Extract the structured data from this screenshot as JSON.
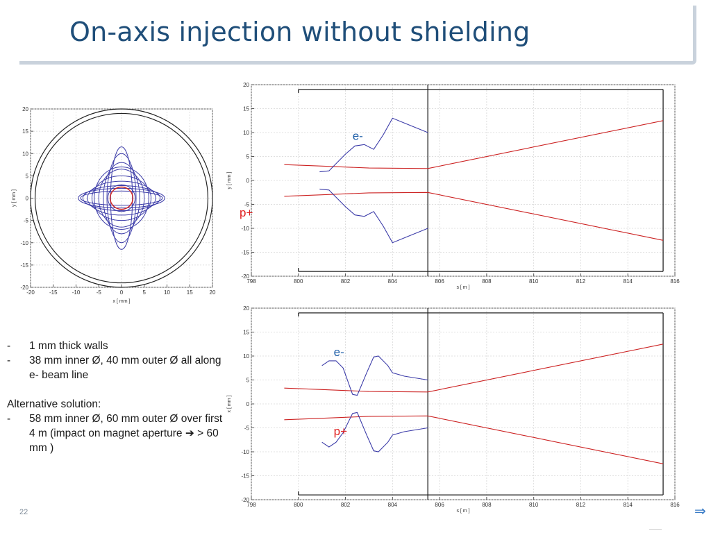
{
  "slide": {
    "title": "On-axis injection without shielding",
    "page_number": "22"
  },
  "bullets": {
    "group1": [
      {
        "dash": "-",
        "text": "1 mm thick walls"
      },
      {
        "dash": "-",
        "text": "38 mm inner Ø, 40 mm outer Ø all along e- beam line"
      }
    ],
    "alt_heading": "Alternative solution:",
    "group2": [
      {
        "dash": "-",
        "text": "58 mm inner Ø, 60 mm outer Ø over first 4 m (impact on magnet aperture ➔ > 60 mm )"
      }
    ]
  },
  "colors": {
    "title": "#1f4e79",
    "electron": "#3b3ba8",
    "proton": "#cc2222",
    "label_e": "#1f5fa8",
    "label_p": "#e02020",
    "wall": "#222222",
    "grid": "#d6d6d6"
  },
  "icons": {
    "nav": "forward-nav-icon"
  },
  "chart_data": [
    {
      "type": "line",
      "title": "",
      "xlabel": "x [ mm ]",
      "ylabel": "y [ mm ]",
      "xlim": [
        -20,
        20
      ],
      "ylim": [
        -20,
        20
      ],
      "xticks": [
        "-20",
        "-15",
        "-10",
        "-5",
        "0",
        "5",
        "10",
        "15",
        "20"
      ],
      "yticks": [
        "20",
        "15",
        "10",
        "5",
        "0",
        "-5",
        "-10",
        "-15",
        "-20"
      ],
      "grid": true,
      "walls": [
        {
          "r": 19
        },
        {
          "r": 20
        }
      ],
      "proton_circle": {
        "r": 2.5
      },
      "electron_ellipses": [
        {
          "a": 9.5,
          "b": 2.2
        },
        {
          "a": 9.0,
          "b": 1.6
        },
        {
          "a": 8.5,
          "b": 2.8
        },
        {
          "a": 7.5,
          "b": 3.8
        },
        {
          "a": 6.5,
          "b": 5.0
        },
        {
          "a": 5.0,
          "b": 6.5
        },
        {
          "a": 4.0,
          "b": 8.0
        },
        {
          "a": 3.2,
          "b": 10.0
        },
        {
          "a": 2.4,
          "b": 11.5
        },
        {
          "a": 6.0,
          "b": 7.0
        },
        {
          "a": 3.0,
          "b": 3.0
        }
      ]
    },
    {
      "type": "line",
      "title": "",
      "xlabel": "s [ m ]",
      "ylabel": "y [ mm ]",
      "xlim": [
        798,
        816
      ],
      "ylim": [
        -20,
        20
      ],
      "xticks": [
        "798",
        "800",
        "802",
        "804",
        "806",
        "808",
        "810",
        "812",
        "814",
        "816"
      ],
      "yticks": [
        "20",
        "15",
        "10",
        "5",
        "0",
        "-5",
        "-10",
        "-15",
        "-20"
      ],
      "grid": true,
      "walls": {
        "upper": 19,
        "lower": -19,
        "s_start": 800,
        "s_end": 815.5,
        "marker_s": 805.5
      },
      "labels": [
        {
          "text": "e-",
          "s": 802.3,
          "v": 8.5,
          "kind": "electron"
        },
        {
          "text": "p+",
          "s": 797.5,
          "v": -7.5,
          "kind": "proton"
        }
      ],
      "series": [
        {
          "kind": "proton",
          "points": [
            [
              799.4,
              3.3
            ],
            [
              801,
              3.0
            ],
            [
              803,
              2.6
            ],
            [
              805.5,
              2.5
            ],
            [
              815.5,
              12.5
            ]
          ]
        },
        {
          "kind": "proton",
          "points": [
            [
              799.4,
              -3.3
            ],
            [
              801,
              -3.0
            ],
            [
              803,
              -2.6
            ],
            [
              805.5,
              -2.5
            ],
            [
              815.5,
              -12.5
            ]
          ]
        },
        {
          "kind": "electron",
          "points": [
            [
              800.9,
              1.8
            ],
            [
              801.3,
              2.0
            ],
            [
              801.5,
              3.0
            ],
            [
              802.0,
              5.5
            ],
            [
              802.4,
              7.2
            ],
            [
              802.8,
              7.5
            ],
            [
              803.2,
              6.5
            ],
            [
              803.6,
              9.5
            ],
            [
              804.0,
              13.0
            ],
            [
              804.5,
              12.0
            ],
            [
              805.5,
              10.0
            ]
          ]
        },
        {
          "kind": "electron",
          "points": [
            [
              800.9,
              -1.8
            ],
            [
              801.3,
              -2.0
            ],
            [
              801.5,
              -3.0
            ],
            [
              802.0,
              -5.5
            ],
            [
              802.4,
              -7.2
            ],
            [
              802.8,
              -7.5
            ],
            [
              803.2,
              -6.5
            ],
            [
              803.6,
              -9.5
            ],
            [
              804.0,
              -13.0
            ],
            [
              804.5,
              -12.0
            ],
            [
              805.5,
              -10.0
            ]
          ]
        }
      ]
    },
    {
      "type": "line",
      "title": "",
      "xlabel": "s [ m ]",
      "ylabel": "x [ mm ]",
      "xlim": [
        798,
        816
      ],
      "ylim": [
        -20,
        20
      ],
      "xticks": [
        "798",
        "800",
        "802",
        "804",
        "806",
        "808",
        "810",
        "812",
        "814",
        "816"
      ],
      "yticks": [
        "20",
        "15",
        "10",
        "5",
        "0",
        "-5",
        "-10",
        "-15",
        "-20"
      ],
      "grid": true,
      "walls": {
        "upper": 19,
        "lower": -19,
        "s_start": 800,
        "s_end": 815.5,
        "marker_s": 805.5
      },
      "labels": [
        {
          "text": "e-",
          "s": 801.5,
          "v": 10.0,
          "kind": "electron"
        },
        {
          "text": "p+",
          "s": 801.5,
          "v": -6.5,
          "kind": "proton"
        }
      ],
      "series": [
        {
          "kind": "proton",
          "points": [
            [
              799.4,
              3.3
            ],
            [
              801,
              3.0
            ],
            [
              803,
              2.6
            ],
            [
              805.5,
              2.5
            ],
            [
              815.5,
              12.5
            ]
          ]
        },
        {
          "kind": "proton",
          "points": [
            [
              799.4,
              -3.3
            ],
            [
              801,
              -3.0
            ],
            [
              803,
              -2.6
            ],
            [
              805.5,
              -2.5
            ],
            [
              815.5,
              -12.5
            ]
          ]
        },
        {
          "kind": "electron",
          "points": [
            [
              801.0,
              8.0
            ],
            [
              801.3,
              9.0
            ],
            [
              801.6,
              9.0
            ],
            [
              801.9,
              7.5
            ],
            [
              802.3,
              2.0
            ],
            [
              802.5,
              1.8
            ],
            [
              802.9,
              6.5
            ],
            [
              803.2,
              9.8
            ],
            [
              803.4,
              10.0
            ],
            [
              803.8,
              8.0
            ],
            [
              804.0,
              6.5
            ],
            [
              804.5,
              5.8
            ],
            [
              805.5,
              5.0
            ]
          ]
        },
        {
          "kind": "electron",
          "points": [
            [
              801.0,
              -8.0
            ],
            [
              801.3,
              -9.0
            ],
            [
              801.6,
              -8.0
            ],
            [
              801.9,
              -6.0
            ],
            [
              802.3,
              -2.0
            ],
            [
              802.5,
              -1.8
            ],
            [
              802.9,
              -6.5
            ],
            [
              803.2,
              -9.8
            ],
            [
              803.4,
              -10.0
            ],
            [
              803.8,
              -8.0
            ],
            [
              804.0,
              -6.5
            ],
            [
              804.5,
              -5.8
            ],
            [
              805.5,
              -5.0
            ]
          ]
        }
      ]
    }
  ]
}
